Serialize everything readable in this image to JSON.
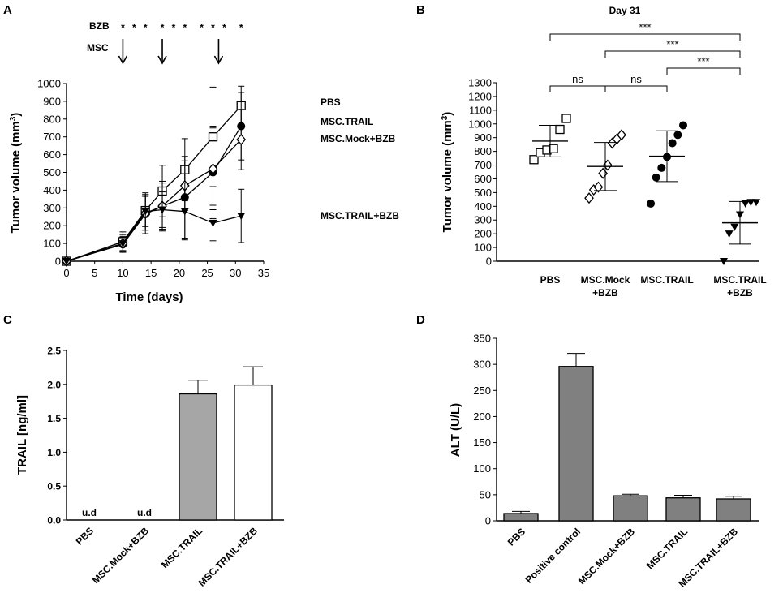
{
  "chart_data": [
    {
      "panel": "A",
      "type": "line",
      "xlabel": "Time (days)",
      "ylabel": "Tumor volume (mm3)",
      "xlim": [
        0,
        35
      ],
      "ylim": [
        0,
        1000
      ],
      "xticks": [
        "0",
        "5",
        "10",
        "15",
        "20",
        "25",
        "30",
        "35"
      ],
      "yticks": [
        "0",
        "100",
        "200",
        "300",
        "400",
        "500",
        "600",
        "700",
        "800",
        "900",
        "1000"
      ],
      "treatment_labels": {
        "bzb": "BZB",
        "msc": "MSC"
      },
      "bzb_days": [
        10,
        12,
        14,
        17,
        19,
        21,
        24,
        26,
        28,
        31
      ],
      "msc_days": [
        10,
        17,
        27
      ],
      "series": [
        {
          "name": "PBS",
          "marker": "open-square",
          "x": [
            0,
            10,
            14,
            17,
            21,
            26,
            31
          ],
          "values": [
            0,
            110,
            285,
            395,
            515,
            700,
            875
          ],
          "err": [
            0,
            55,
            90,
            145,
            175,
            280,
            110
          ]
        },
        {
          "name": "MSC.TRAIL",
          "marker": "filled-circle",
          "x": [
            0,
            10,
            14,
            17,
            21,
            26,
            31
          ],
          "values": [
            0,
            95,
            265,
            310,
            360,
            500,
            760
          ],
          "err": [
            0,
            40,
            110,
            140,
            230,
            260,
            190
          ]
        },
        {
          "name": "MSC.Mock+BZB",
          "marker": "open-diamond",
          "x": [
            0,
            10,
            14,
            17,
            21,
            26,
            31
          ],
          "values": [
            0,
            100,
            270,
            310,
            425,
            520,
            685
          ],
          "err": [
            0,
            50,
            95,
            130,
            140,
            230,
            170
          ]
        },
        {
          "name": "MSC.TRAIL+BZB",
          "marker": "filled-triangle-down",
          "x": [
            0,
            10,
            14,
            17,
            21,
            26,
            31
          ],
          "values": [
            0,
            100,
            280,
            290,
            280,
            215,
            255
          ],
          "err": [
            0,
            40,
            105,
            100,
            160,
            100,
            150
          ]
        }
      ]
    },
    {
      "panel": "B",
      "type": "scatter",
      "title": "Day 31",
      "ylabel": "Tumor volume (mm3)",
      "ylim": [
        0,
        1300
      ],
      "yticks": [
        "0",
        "100",
        "200",
        "300",
        "400",
        "500",
        "600",
        "700",
        "800",
        "900",
        "1000",
        "1100",
        "1200",
        "1300"
      ],
      "categories": [
        "PBS",
        "MSC.Mock\n+BZB",
        "MSC.TRAIL",
        "MSC.TRAIL\n+BZB"
      ],
      "groups": [
        {
          "name": "PBS",
          "marker": "open-square",
          "points": [
            740,
            790,
            810,
            820,
            960,
            1040
          ],
          "mean": 875,
          "sd": 115
        },
        {
          "name": "MSC.Mock+BZB",
          "marker": "open-diamond",
          "points": [
            460,
            520,
            540,
            640,
            700,
            860,
            890,
            920
          ],
          "mean": 690,
          "sd": 175
        },
        {
          "name": "MSC.TRAIL",
          "marker": "filled-circle",
          "points": [
            420,
            610,
            680,
            760,
            860,
            920,
            990
          ],
          "mean": 765,
          "sd": 185
        },
        {
          "name": "MSC.TRAIL+BZB",
          "marker": "filled-triangle-down",
          "points": [
            0,
            200,
            250,
            340,
            420,
            430,
            430
          ],
          "mean": 280,
          "sd": 155
        }
      ],
      "comparisons": [
        {
          "a": 0,
          "b": 3,
          "label": "***"
        },
        {
          "a": 1,
          "b": 3,
          "label": "***"
        },
        {
          "a": 2,
          "b": 3,
          "label": "***"
        },
        {
          "a": 0,
          "b": 1,
          "label": "ns"
        },
        {
          "a": 1,
          "b": 2,
          "label": "ns"
        }
      ]
    },
    {
      "panel": "C",
      "type": "bar",
      "ylabel": "TRAIL [ng/ml]",
      "ylim": [
        0,
        2.5
      ],
      "yticks": [
        "0.0",
        "0.5",
        "1.0",
        "1.5",
        "2.0",
        "2.5"
      ],
      "categories": [
        "PBS",
        "MSC.Mock+BZB",
        "MSC.TRAIL",
        "MSC.TRAIL+BZB"
      ],
      "values": [
        0,
        0,
        1.86,
        1.99
      ],
      "err": [
        0,
        0,
        0.2,
        0.27
      ],
      "bar_colors": [
        "#a6a6a6",
        "#a6a6a6",
        "#a6a6a6",
        "#ffffff"
      ],
      "annotations": [
        "u.d",
        "u.d",
        "",
        ""
      ]
    },
    {
      "panel": "D",
      "type": "bar",
      "ylabel": "ALT (U/L)",
      "ylim": [
        0,
        350
      ],
      "yticks": [
        "0",
        "50",
        "100",
        "150",
        "200",
        "250",
        "300",
        "350"
      ],
      "categories": [
        "PBS",
        "Positive control",
        "MSC.Mock+BZB",
        "MSC.TRAIL",
        "MSC.TRAIL+BZB"
      ],
      "values": [
        14,
        296,
        48,
        44,
        42
      ],
      "err": [
        4,
        25,
        3,
        5,
        5
      ],
      "bar_color": "#808080"
    }
  ]
}
